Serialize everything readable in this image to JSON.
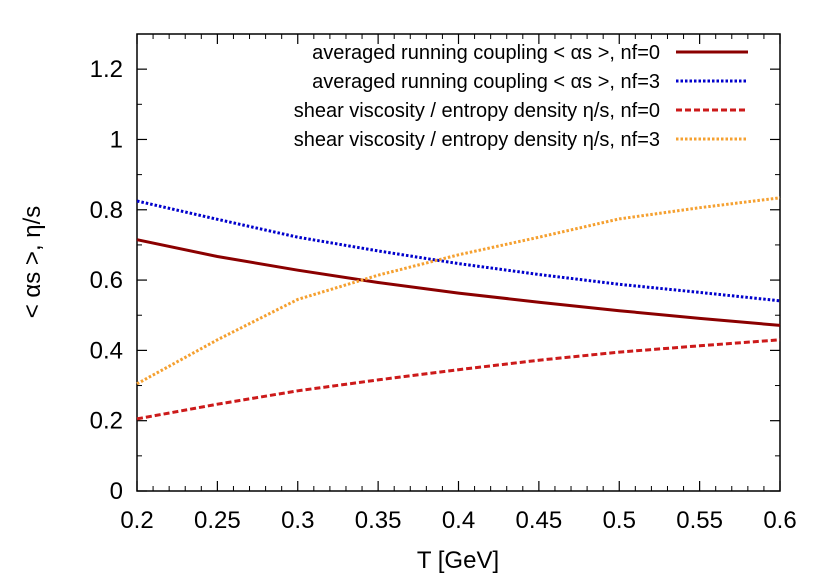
{
  "chart_data": {
    "type": "line",
    "title": "",
    "xlabel": "T [GeV]",
    "ylabel": "< αs >, η/s",
    "xlim": [
      0.2,
      0.6
    ],
    "ylim": [
      0,
      1.3
    ],
    "x_ticks": [
      "0.2",
      "0.25",
      "0.3",
      "0.35",
      "0.4",
      "0.45",
      "0.5",
      "0.55",
      "0.6"
    ],
    "y_ticks": [
      "0",
      "0.2",
      "0.4",
      "0.6",
      "0.8",
      "1",
      "1.2"
    ],
    "grid": false,
    "legend_position": "top-right",
    "series": [
      {
        "name": "averaged running coupling < αs >, nf=0",
        "color": "#8b0000",
        "style": "solid",
        "x": [
          0.2,
          0.25,
          0.3,
          0.35,
          0.4,
          0.45,
          0.5,
          0.55,
          0.6
        ],
        "y": [
          0.715,
          0.667,
          0.628,
          0.593,
          0.563,
          0.537,
          0.513,
          0.491,
          0.471
        ]
      },
      {
        "name": "averaged running coupling < αs >, nf=3",
        "color": "#0000cc",
        "style": "dotted",
        "x": [
          0.2,
          0.25,
          0.3,
          0.35,
          0.4,
          0.45,
          0.5,
          0.55,
          0.6
        ],
        "y": [
          0.825,
          0.773,
          0.722,
          0.683,
          0.647,
          0.616,
          0.588,
          0.565,
          0.541
        ]
      },
      {
        "name": "shear viscosity / entropy density η/s, nf=0",
        "color": "#cc1a1a",
        "style": "dashed",
        "x": [
          0.2,
          0.25,
          0.3,
          0.35,
          0.4,
          0.45,
          0.5,
          0.55,
          0.6
        ],
        "y": [
          0.205,
          0.247,
          0.285,
          0.316,
          0.345,
          0.372,
          0.395,
          0.413,
          0.43
        ]
      },
      {
        "name": "shear viscosity / entropy density η/s, nf=3",
        "color": "#f5a030",
        "style": "dotted",
        "x": [
          0.2,
          0.25,
          0.3,
          0.35,
          0.4,
          0.45,
          0.5,
          0.55,
          0.6
        ],
        "y": [
          0.305,
          0.43,
          0.545,
          0.614,
          0.672,
          0.722,
          0.774,
          0.806,
          0.834
        ]
      }
    ]
  }
}
